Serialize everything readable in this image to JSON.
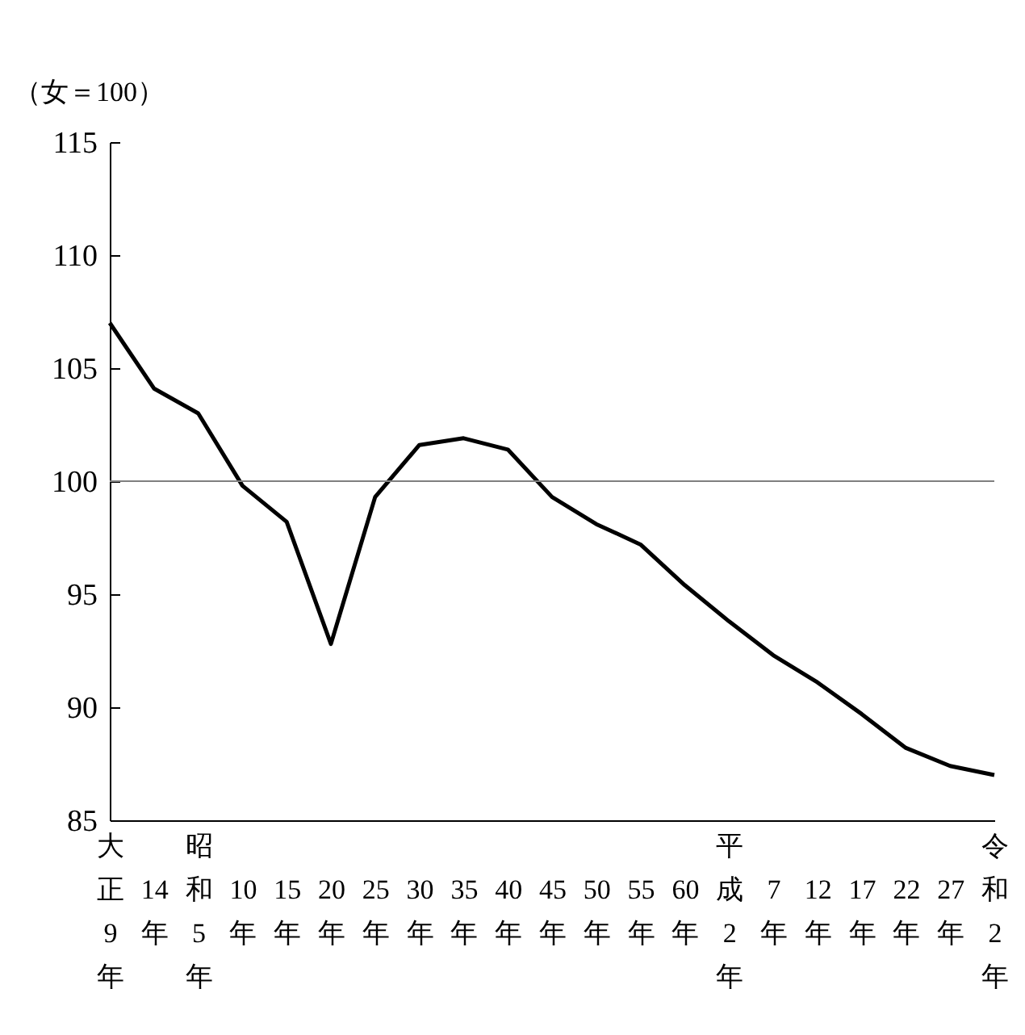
{
  "chart_data": {
    "type": "line",
    "ylabel": "（女＝100）",
    "categories": [
      "大正9年",
      "14年",
      "昭和5年",
      "10年",
      "15年",
      "20年",
      "25年",
      "30年",
      "35年",
      "40年",
      "45年",
      "50年",
      "55年",
      "60年",
      "平成2年",
      "7年",
      "12年",
      "17年",
      "22年",
      "27年",
      "令和2年"
    ],
    "series": [
      {
        "color": "#000000",
        "values": [
          107.0,
          104.1,
          103.0,
          99.8,
          98.2,
          92.8,
          99.3,
          101.6,
          101.9,
          101.4,
          99.3,
          98.1,
          97.2,
          95.4,
          93.8,
          92.3,
          91.1,
          89.7,
          88.2,
          87.4,
          87.0
        ]
      }
    ],
    "ylim": [
      85,
      115
    ],
    "yticks": [
      85,
      90,
      95,
      100,
      105,
      110,
      115
    ],
    "ref_lines": [
      {
        "axis": "y",
        "value": 100,
        "color": "#808080"
      }
    ],
    "grid": false,
    "marker": "none",
    "line_style": "solid"
  }
}
